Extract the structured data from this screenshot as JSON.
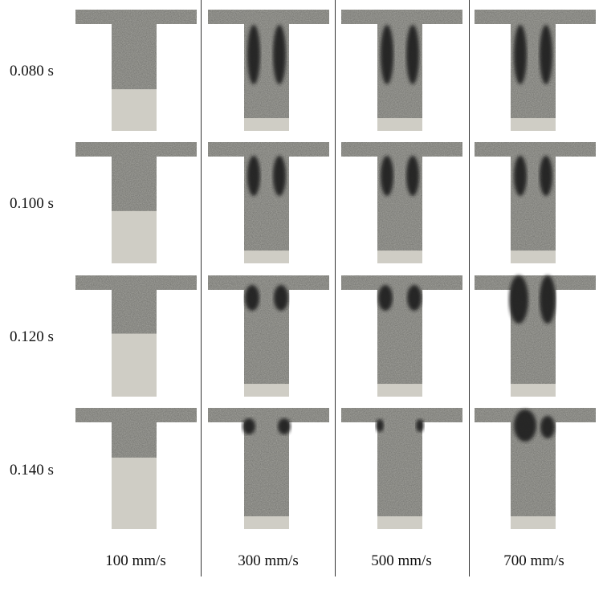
{
  "row_labels": [
    "0.080 s",
    "0.100 s",
    "0.120 s",
    "0.140 s"
  ],
  "column_labels": [
    "100 mm/s",
    "300 mm/s",
    "500 mm/s",
    "700 mm/s"
  ],
  "colors": {
    "metal_gray": "#a9a9a3",
    "unfilled": "#cfcdc5",
    "dark_region": "#1e1e1e",
    "divider": "#333333"
  },
  "panels": [
    {
      "time": "0.080 s",
      "speed": "100 mm/s",
      "fill_level": 0.61,
      "dark_regions": "none"
    },
    {
      "time": "0.080 s",
      "speed": "300 mm/s",
      "fill_level": 0.88,
      "dark_regions": "two-side"
    },
    {
      "time": "0.080 s",
      "speed": "500 mm/s",
      "fill_level": 0.88,
      "dark_regions": "two-side"
    },
    {
      "time": "0.080 s",
      "speed": "700 mm/s",
      "fill_level": 0.88,
      "dark_regions": "two-side"
    },
    {
      "time": "0.100 s",
      "speed": "100 mm/s",
      "fill_level": 0.51,
      "dark_regions": "none"
    },
    {
      "time": "0.100 s",
      "speed": "300 mm/s",
      "fill_level": 0.88,
      "dark_regions": "two-side"
    },
    {
      "time": "0.100 s",
      "speed": "500 mm/s",
      "fill_level": 0.88,
      "dark_regions": "two-side"
    },
    {
      "time": "0.100 s",
      "speed": "700 mm/s",
      "fill_level": 0.88,
      "dark_regions": "two-side"
    },
    {
      "time": "0.120 s",
      "speed": "100 mm/s",
      "fill_level": 0.41,
      "dark_regions": "none"
    },
    {
      "time": "0.120 s",
      "speed": "300 mm/s",
      "fill_level": 0.88,
      "dark_regions": "two-side"
    },
    {
      "time": "0.120 s",
      "speed": "500 mm/s",
      "fill_level": 0.88,
      "dark_regions": "two-side"
    },
    {
      "time": "0.120 s",
      "speed": "700 mm/s",
      "fill_level": 0.88,
      "dark_regions": "two-side"
    },
    {
      "time": "0.140 s",
      "speed": "100 mm/s",
      "fill_level": 0.33,
      "dark_regions": "none"
    },
    {
      "time": "0.140 s",
      "speed": "300 mm/s",
      "fill_level": 0.88,
      "dark_regions": "two-side"
    },
    {
      "time": "0.140 s",
      "speed": "500 mm/s",
      "fill_level": 0.88,
      "dark_regions": "two-side"
    },
    {
      "time": "0.140 s",
      "speed": "700 mm/s",
      "fill_level": 0.88,
      "dark_regions": "two-side"
    }
  ]
}
